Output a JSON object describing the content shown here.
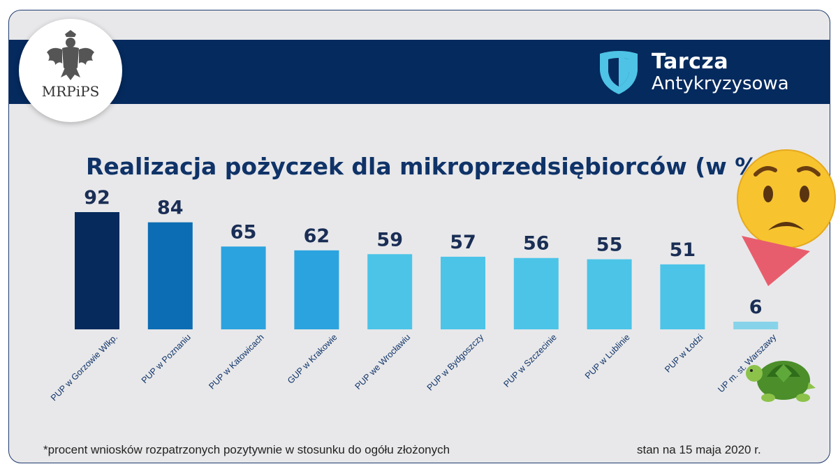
{
  "logo": {
    "text": "MRPiPS",
    "icon": "eagle-emblem-icon"
  },
  "brand": {
    "line1": "Tarcza",
    "line2": "Antykryzysowa",
    "icon": "shield-icon",
    "color": "#4ec3e6"
  },
  "footnote": "*procent wniosków rozpatrzonych pozytywnie w stosunku do ogółu złożonych",
  "date_note": "stan na 15 maja 2020 r.",
  "decorations": {
    "emoji1": "worried-face-icon",
    "emoji2": "red-triangle-down-icon",
    "emoji3": "turtle-icon"
  },
  "chart_data": {
    "type": "bar",
    "title": "Realizacja pożyczek dla mikroprzedsiębiorców (w %)",
    "xlabel": "",
    "ylabel": "",
    "ylim": [
      0,
      100
    ],
    "grid": false,
    "categories": [
      "PUP w Gorzowie Wlkp.",
      "PUP w Poznaniu",
      "PUP w Katowicach",
      "GUP w Krakowie",
      "PUP we Wrocławiu",
      "PUP w Bydgoszczy",
      "PUP w Szczecinie",
      "PUP w Lublinie",
      "PUP w Łodzi",
      "UP m. st. Warszawy"
    ],
    "values": [
      92,
      84,
      65,
      62,
      59,
      57,
      56,
      55,
      51,
      6
    ],
    "colors": [
      "#062a5c",
      "#0c6db4",
      "#2ba3df",
      "#2ba3df",
      "#4cc4e8",
      "#4cc4e8",
      "#4cc4e8",
      "#4cc4e8",
      "#4cc4e8",
      "#87d3ea"
    ]
  }
}
